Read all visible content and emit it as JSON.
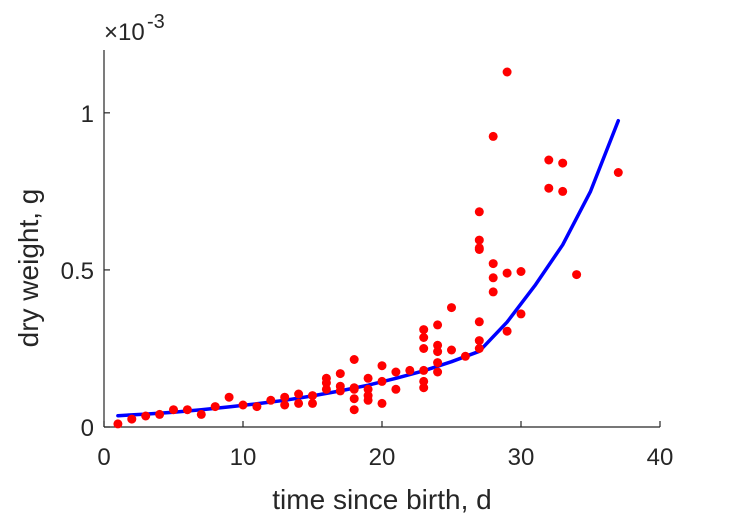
{
  "chart_data": {
    "type": "scatter",
    "xlabel": "time since birth, d",
    "ylabel": "dry weight, g",
    "y_multiplier_label": "×10",
    "y_multiplier_exponent": "-3",
    "xlim": [
      0,
      40
    ],
    "ylim": [
      0,
      1.2
    ],
    "x_ticks": [
      0,
      10,
      20,
      30,
      40
    ],
    "x_tick_labels": [
      "0",
      "10",
      "20",
      "30",
      "40"
    ],
    "y_ticks": [
      0,
      0.5,
      1
    ],
    "y_tick_labels": [
      "0",
      "0.5",
      "1"
    ],
    "grid": false,
    "legend": false,
    "colors": {
      "points": "#ff0000",
      "curve": "#0000ff",
      "axis": "#262626"
    },
    "series": [
      {
        "type": "scatter",
        "x": [
          1,
          2,
          3,
          4,
          5,
          6,
          7,
          8,
          9,
          10,
          11,
          12,
          13,
          13,
          14,
          14,
          15,
          15,
          16,
          16,
          16,
          17,
          17,
          17,
          18,
          18,
          18,
          18,
          18,
          19,
          19,
          19,
          19,
          20,
          20,
          20,
          21,
          21,
          22,
          23,
          23,
          23,
          23,
          23,
          23,
          24,
          24,
          24,
          24,
          24,
          25,
          25,
          26,
          27,
          27,
          27,
          27,
          27,
          27,
          27,
          28,
          28,
          28,
          28,
          29,
          29,
          29,
          30,
          30,
          32,
          32,
          33,
          33,
          34,
          37
        ],
        "y": [
          0.01,
          0.025,
          0.035,
          0.04,
          0.055,
          0.055,
          0.04,
          0.065,
          0.095,
          0.07,
          0.065,
          0.085,
          0.07,
          0.095,
          0.075,
          0.105,
          0.075,
          0.1,
          0.12,
          0.14,
          0.155,
          0.115,
          0.13,
          0.17,
          0.055,
          0.09,
          0.125,
          0.12,
          0.215,
          0.085,
          0.1,
          0.12,
          0.155,
          0.075,
          0.145,
          0.195,
          0.12,
          0.175,
          0.18,
          0.125,
          0.145,
          0.18,
          0.25,
          0.285,
          0.31,
          0.175,
          0.205,
          0.26,
          0.325,
          0.24,
          0.245,
          0.38,
          0.225,
          0.25,
          0.275,
          0.335,
          0.565,
          0.595,
          0.685,
          0.57,
          0.43,
          0.475,
          0.52,
          0.925,
          0.305,
          0.49,
          1.13,
          0.36,
          0.495,
          0.76,
          0.85,
          0.75,
          0.84,
          0.485,
          0.81
        ]
      },
      {
        "type": "line",
        "x": [
          1,
          3,
          5,
          7,
          9,
          11,
          13,
          15,
          17,
          19,
          21,
          23,
          25,
          27,
          29,
          31,
          33,
          35,
          37
        ],
        "y": [
          0.036,
          0.041,
          0.047,
          0.055,
          0.064,
          0.074,
          0.085,
          0.099,
          0.115,
          0.133,
          0.155,
          0.179,
          0.208,
          0.241,
          0.334,
          0.45,
          0.58,
          0.75,
          0.975
        ]
      }
    ]
  }
}
